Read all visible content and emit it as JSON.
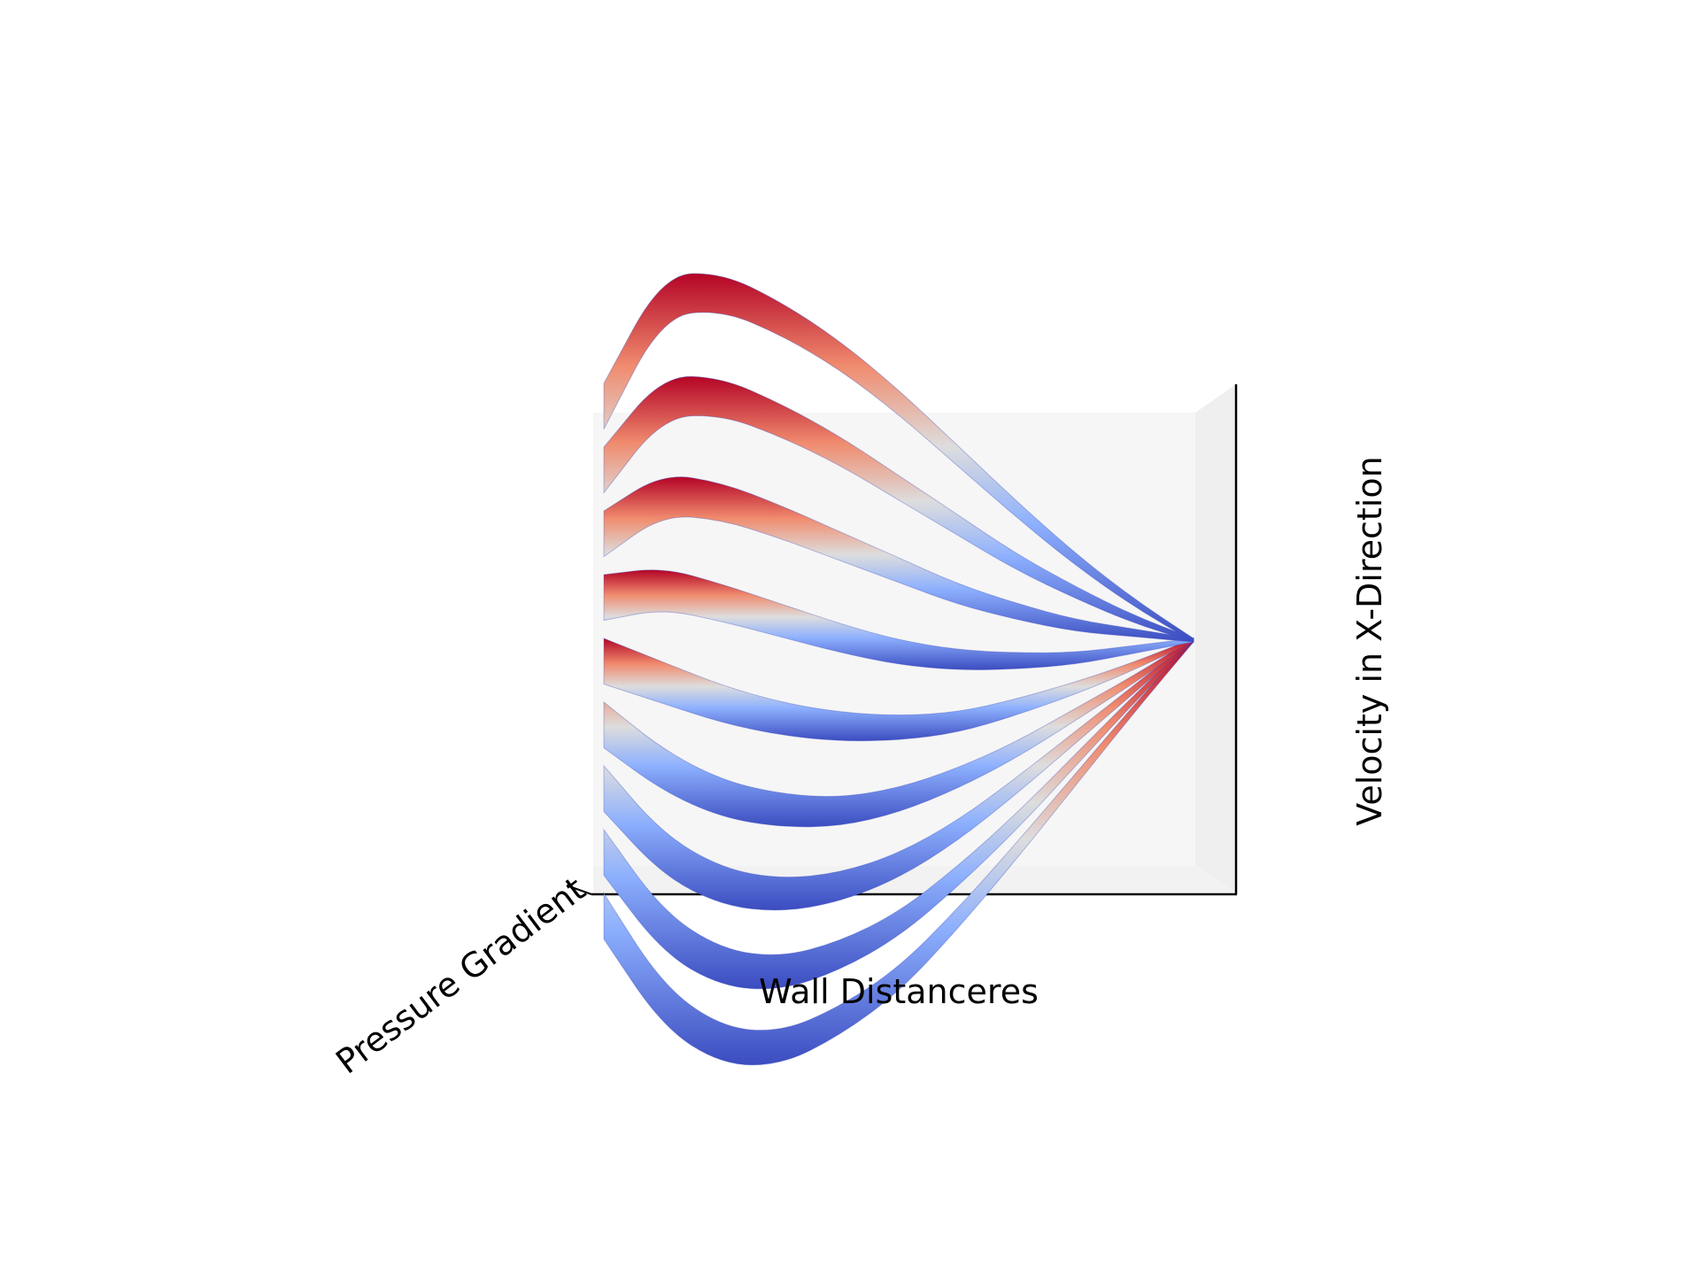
{
  "chart_data": {
    "type": "surface",
    "title": "",
    "xlabel": "Wall Distanceres",
    "ylabel": "Pressure Gradient",
    "zlabel": "Velocity in X-Direction",
    "colormap": "coolwarm",
    "colors": {
      "low": "#3b4cc0",
      "mid": "#dddddd",
      "high": "#b40426"
    },
    "view": "front-elevated (near edge-on)",
    "ticks_visible": false,
    "grid": false,
    "x_range": [
      0,
      1
    ],
    "y_range": [
      -8,
      8
    ],
    "wall_distance": [
      0,
      0.1,
      0.2,
      0.3,
      0.4,
      0.5,
      0.6,
      0.7,
      0.8,
      0.9,
      1.0
    ],
    "series": [
      {
        "pressure_gradient": -8,
        "velocity": [
          0.0,
          -0.35,
          -0.55,
          -0.64,
          -0.64,
          -0.6,
          -0.5,
          -0.38,
          -0.25,
          -0.12,
          0.0
        ]
      },
      {
        "pressure_gradient": -6,
        "velocity": [
          0.0,
          -0.3,
          -0.47,
          -0.55,
          -0.56,
          -0.53,
          -0.45,
          -0.35,
          -0.23,
          -0.11,
          0.0
        ]
      },
      {
        "pressure_gradient": -4,
        "velocity": [
          0.0,
          -0.24,
          -0.38,
          -0.45,
          -0.47,
          -0.45,
          -0.39,
          -0.3,
          -0.2,
          -0.1,
          0.0
        ]
      },
      {
        "pressure_gradient": -2,
        "velocity": [
          0.0,
          -0.16,
          -0.27,
          -0.33,
          -0.36,
          -0.35,
          -0.31,
          -0.25,
          -0.17,
          -0.09,
          0.0
        ]
      },
      {
        "pressure_gradient": 0,
        "velocity": [
          0.0,
          -0.07,
          -0.14,
          -0.19,
          -0.22,
          -0.23,
          -0.22,
          -0.18,
          -0.13,
          -0.07,
          0.0
        ]
      },
      {
        "pressure_gradient": 2,
        "velocity": [
          0.0,
          0.04,
          0.01,
          -0.03,
          -0.07,
          -0.1,
          -0.11,
          -0.1,
          -0.08,
          -0.04,
          0.0
        ]
      },
      {
        "pressure_gradient": 4,
        "velocity": [
          0.0,
          0.15,
          0.16,
          0.13,
          0.09,
          0.05,
          0.01,
          -0.01,
          -0.02,
          -0.01,
          0.0
        ]
      },
      {
        "pressure_gradient": 6,
        "velocity": [
          0.0,
          0.27,
          0.32,
          0.3,
          0.26,
          0.2,
          0.14,
          0.08,
          0.04,
          0.01,
          0.0
        ]
      },
      {
        "pressure_gradient": 8,
        "velocity": [
          0.0,
          0.4,
          0.48,
          0.47,
          0.43,
          0.36,
          0.27,
          0.18,
          0.1,
          0.04,
          0.0
        ]
      }
    ]
  }
}
